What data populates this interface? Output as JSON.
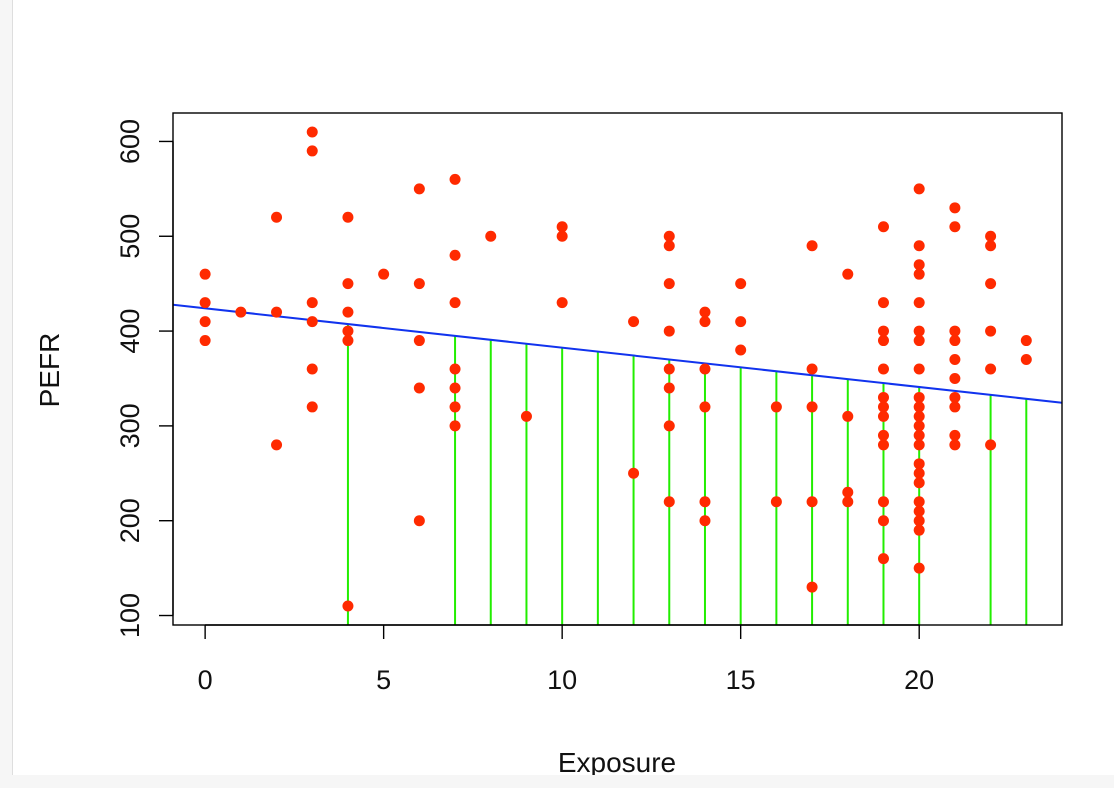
{
  "colors": {
    "points": "#ff2a00",
    "regression_line": "#1133ee",
    "drop_lines": "#22ee00",
    "axis": "#000000"
  },
  "chart_data": {
    "type": "scatter",
    "title": "",
    "xlabel": "Exposure",
    "ylabel": "PEFR",
    "xlim": [
      -0.9,
      24
    ],
    "ylim": [
      90,
      630
    ],
    "xticks": [
      0,
      5,
      10,
      15,
      20
    ],
    "yticks": [
      100,
      200,
      300,
      400,
      500,
      600
    ],
    "grid": false,
    "points": [
      {
        "x": 0,
        "y": 460
      },
      {
        "x": 0,
        "y": 430
      },
      {
        "x": 0,
        "y": 410
      },
      {
        "x": 0,
        "y": 390
      },
      {
        "x": 1,
        "y": 420
      },
      {
        "x": 2,
        "y": 520
      },
      {
        "x": 2,
        "y": 420
      },
      {
        "x": 2,
        "y": 280
      },
      {
        "x": 3,
        "y": 610
      },
      {
        "x": 3,
        "y": 590
      },
      {
        "x": 3,
        "y": 430
      },
      {
        "x": 3,
        "y": 410
      },
      {
        "x": 3,
        "y": 360
      },
      {
        "x": 3,
        "y": 320
      },
      {
        "x": 4,
        "y": 520
      },
      {
        "x": 4,
        "y": 450
      },
      {
        "x": 4,
        "y": 420
      },
      {
        "x": 4,
        "y": 400
      },
      {
        "x": 4,
        "y": 390
      },
      {
        "x": 4,
        "y": 110
      },
      {
        "x": 5,
        "y": 460
      },
      {
        "x": 6,
        "y": 550
      },
      {
        "x": 6,
        "y": 450
      },
      {
        "x": 6,
        "y": 390
      },
      {
        "x": 6,
        "y": 340
      },
      {
        "x": 6,
        "y": 200
      },
      {
        "x": 7,
        "y": 560
      },
      {
        "x": 7,
        "y": 480
      },
      {
        "x": 7,
        "y": 430
      },
      {
        "x": 7,
        "y": 360
      },
      {
        "x": 7,
        "y": 340
      },
      {
        "x": 7,
        "y": 320
      },
      {
        "x": 7,
        "y": 300
      },
      {
        "x": 8,
        "y": 500
      },
      {
        "x": 9,
        "y": 310
      },
      {
        "x": 10,
        "y": 510
      },
      {
        "x": 10,
        "y": 500
      },
      {
        "x": 10,
        "y": 430
      },
      {
        "x": 12,
        "y": 410
      },
      {
        "x": 12,
        "y": 250
      },
      {
        "x": 13,
        "y": 500
      },
      {
        "x": 13,
        "y": 490
      },
      {
        "x": 13,
        "y": 450
      },
      {
        "x": 13,
        "y": 400
      },
      {
        "x": 13,
        "y": 360
      },
      {
        "x": 13,
        "y": 340
      },
      {
        "x": 13,
        "y": 300
      },
      {
        "x": 13,
        "y": 220
      },
      {
        "x": 14,
        "y": 420
      },
      {
        "x": 14,
        "y": 410
      },
      {
        "x": 14,
        "y": 360
      },
      {
        "x": 14,
        "y": 320
      },
      {
        "x": 14,
        "y": 220
      },
      {
        "x": 14,
        "y": 200
      },
      {
        "x": 15,
        "y": 450
      },
      {
        "x": 15,
        "y": 410
      },
      {
        "x": 15,
        "y": 380
      },
      {
        "x": 16,
        "y": 320
      },
      {
        "x": 16,
        "y": 220
      },
      {
        "x": 17,
        "y": 490
      },
      {
        "x": 17,
        "y": 360
      },
      {
        "x": 17,
        "y": 320
      },
      {
        "x": 17,
        "y": 220
      },
      {
        "x": 17,
        "y": 130
      },
      {
        "x": 18,
        "y": 460
      },
      {
        "x": 18,
        "y": 310
      },
      {
        "x": 18,
        "y": 230
      },
      {
        "x": 18,
        "y": 220
      },
      {
        "x": 19,
        "y": 510
      },
      {
        "x": 19,
        "y": 430
      },
      {
        "x": 19,
        "y": 400
      },
      {
        "x": 19,
        "y": 390
      },
      {
        "x": 19,
        "y": 360
      },
      {
        "x": 19,
        "y": 330
      },
      {
        "x": 19,
        "y": 320
      },
      {
        "x": 19,
        "y": 310
      },
      {
        "x": 19,
        "y": 290
      },
      {
        "x": 19,
        "y": 280
      },
      {
        "x": 19,
        "y": 220
      },
      {
        "x": 19,
        "y": 200
      },
      {
        "x": 19,
        "y": 160
      },
      {
        "x": 20,
        "y": 550
      },
      {
        "x": 20,
        "y": 490
      },
      {
        "x": 20,
        "y": 470
      },
      {
        "x": 20,
        "y": 460
      },
      {
        "x": 20,
        "y": 430
      },
      {
        "x": 20,
        "y": 400
      },
      {
        "x": 20,
        "y": 390
      },
      {
        "x": 20,
        "y": 360
      },
      {
        "x": 20,
        "y": 330
      },
      {
        "x": 20,
        "y": 320
      },
      {
        "x": 20,
        "y": 310
      },
      {
        "x": 20,
        "y": 300
      },
      {
        "x": 20,
        "y": 290
      },
      {
        "x": 20,
        "y": 280
      },
      {
        "x": 20,
        "y": 260
      },
      {
        "x": 20,
        "y": 250
      },
      {
        "x": 20,
        "y": 240
      },
      {
        "x": 20,
        "y": 220
      },
      {
        "x": 20,
        "y": 210
      },
      {
        "x": 20,
        "y": 200
      },
      {
        "x": 20,
        "y": 190
      },
      {
        "x": 20,
        "y": 150
      },
      {
        "x": 21,
        "y": 530
      },
      {
        "x": 21,
        "y": 510
      },
      {
        "x": 21,
        "y": 400
      },
      {
        "x": 21,
        "y": 390
      },
      {
        "x": 21,
        "y": 370
      },
      {
        "x": 21,
        "y": 350
      },
      {
        "x": 21,
        "y": 330
      },
      {
        "x": 21,
        "y": 320
      },
      {
        "x": 21,
        "y": 290
      },
      {
        "x": 21,
        "y": 280
      },
      {
        "x": 22,
        "y": 500
      },
      {
        "x": 22,
        "y": 490
      },
      {
        "x": 22,
        "y": 450
      },
      {
        "x": 22,
        "y": 400
      },
      {
        "x": 22,
        "y": 360
      },
      {
        "x": 22,
        "y": 280
      },
      {
        "x": 23,
        "y": 390
      },
      {
        "x": 23,
        "y": 370
      }
    ],
    "regression_line": {
      "intercept": 424,
      "slope": -4.15
    },
    "drop_lines": {
      "x": [
        4,
        7,
        8,
        9,
        10,
        11,
        12,
        13,
        14,
        15,
        16,
        17,
        18,
        19,
        20,
        22,
        23
      ],
      "from_y": 90
    }
  }
}
